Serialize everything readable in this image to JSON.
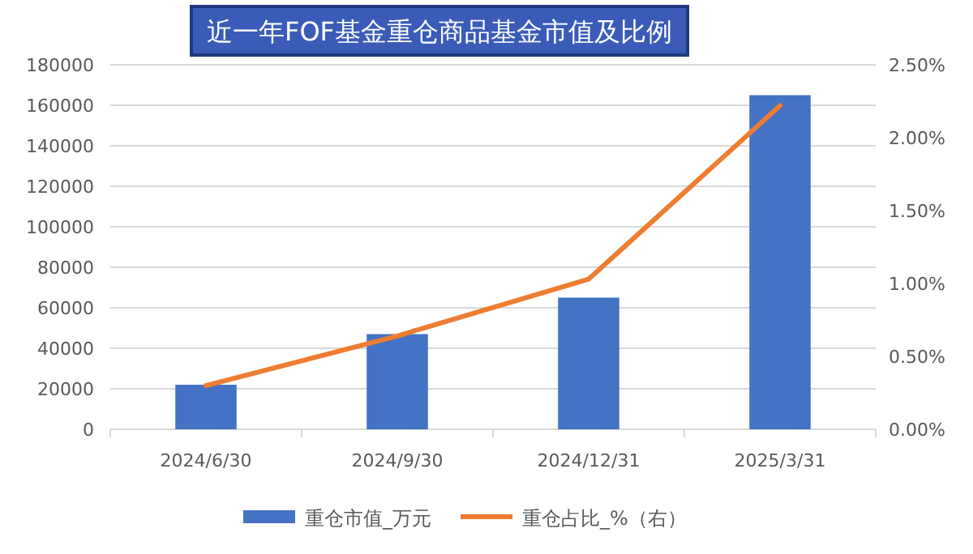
{
  "chart_data": {
    "type": "bar",
    "title": "近一年FOF基金重仓商品基金市值及比例",
    "categories": [
      "2024/6/30",
      "2024/9/30",
      "2024/12/31",
      "2025/3/31"
    ],
    "series": [
      {
        "name": "重仓市值_万元",
        "color": "#4472c4",
        "values": [
          22000,
          47000,
          65000,
          165000
        ]
      },
      {
        "name": "重仓占比_%（右）",
        "type": "line",
        "axis": "y2",
        "color": "#ed7d31",
        "values": [
          0.3,
          0.64,
          1.03,
          2.22
        ]
      }
    ],
    "ylim": [
      0,
      180000
    ],
    "yticks": [
      0,
      20000,
      40000,
      60000,
      80000,
      100000,
      120000,
      140000,
      160000,
      180000
    ],
    "y2lim": [
      0,
      2.5
    ],
    "y2ticks": [
      {
        "value": 0,
        "label": "0.00%"
      },
      {
        "value": 0.5,
        "label": "0.50%"
      },
      {
        "value": 1,
        "label": "1.00%"
      },
      {
        "value": 1.5,
        "label": "1.50%"
      },
      {
        "value": 2,
        "label": "2.00%"
      },
      {
        "value": 2.5,
        "label": "2.50%"
      }
    ],
    "grid": "y",
    "legend": "bottom",
    "marker": "none",
    "line_style": "solid"
  }
}
